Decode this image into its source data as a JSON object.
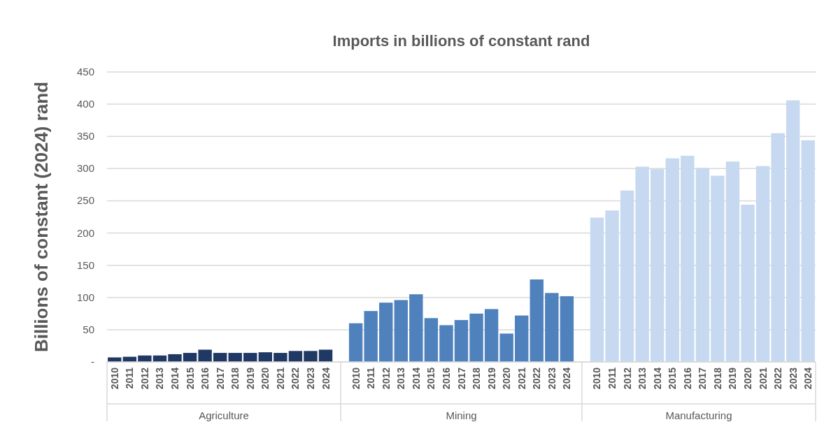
{
  "chart_data": {
    "type": "bar",
    "title": "Imports in billions of constant rand",
    "ylabel": "Billions of constant (2024) rand",
    "categories": [
      "2010",
      "2011",
      "2012",
      "2013",
      "2014",
      "2015",
      "2016",
      "2017",
      "2018",
      "2019",
      "2020",
      "2021",
      "2022",
      "2023",
      "2024",
      null,
      "2010",
      "2011",
      "2012",
      "2013",
      "2014",
      "2015",
      "2016",
      "2017",
      "2018",
      "2019",
      "2020",
      "2021",
      "2022",
      "2023",
      "2024",
      null,
      "2010",
      "2011",
      "2012",
      "2013",
      "2014",
      "2015",
      "2016",
      "2017",
      "2018",
      "2019",
      "2020",
      "2021",
      "2022",
      "2023",
      "2024"
    ],
    "series": [
      {
        "color": "#1f3864",
        "values": [
          7,
          8,
          10,
          10,
          12,
          14,
          19,
          14,
          14,
          14,
          15,
          14,
          17,
          17,
          19,
          null,
          null,
          null,
          null,
          null,
          null,
          null,
          null,
          null,
          null,
          null,
          null,
          null,
          null,
          null,
          null,
          null,
          null,
          null,
          null,
          null,
          null,
          null,
          null,
          null,
          null,
          null,
          null,
          null,
          null,
          null,
          null
        ]
      },
      {
        "color": "#4f81bd",
        "values": [
          null,
          null,
          null,
          null,
          null,
          null,
          null,
          null,
          null,
          null,
          null,
          null,
          null,
          null,
          null,
          null,
          60,
          79,
          92,
          96,
          105,
          68,
          57,
          65,
          75,
          82,
          44,
          72,
          128,
          107,
          102,
          null,
          null,
          null,
          null,
          null,
          null,
          null,
          null,
          null,
          null,
          null,
          null,
          null,
          null,
          null,
          null
        ]
      },
      {
        "color": "#c6d9f0",
        "values": [
          null,
          null,
          null,
          null,
          null,
          null,
          null,
          null,
          null,
          null,
          null,
          null,
          null,
          null,
          null,
          null,
          null,
          null,
          null,
          null,
          null,
          null,
          null,
          null,
          null,
          null,
          null,
          null,
          null,
          null,
          null,
          null,
          224,
          235,
          266,
          303,
          299,
          316,
          320,
          301,
          289,
          311,
          244,
          304,
          355,
          406,
          344
        ]
      }
    ],
    "ylim": [
      0,
      450
    ],
    "yticks": [
      {
        "value": 0,
        "label": "-"
      },
      50,
      100,
      150,
      200,
      250,
      300,
      350,
      400,
      450
    ],
    "grid": "y",
    "annotations": [
      "Agriculture",
      "Mining",
      "Manufacturing"
    ]
  }
}
